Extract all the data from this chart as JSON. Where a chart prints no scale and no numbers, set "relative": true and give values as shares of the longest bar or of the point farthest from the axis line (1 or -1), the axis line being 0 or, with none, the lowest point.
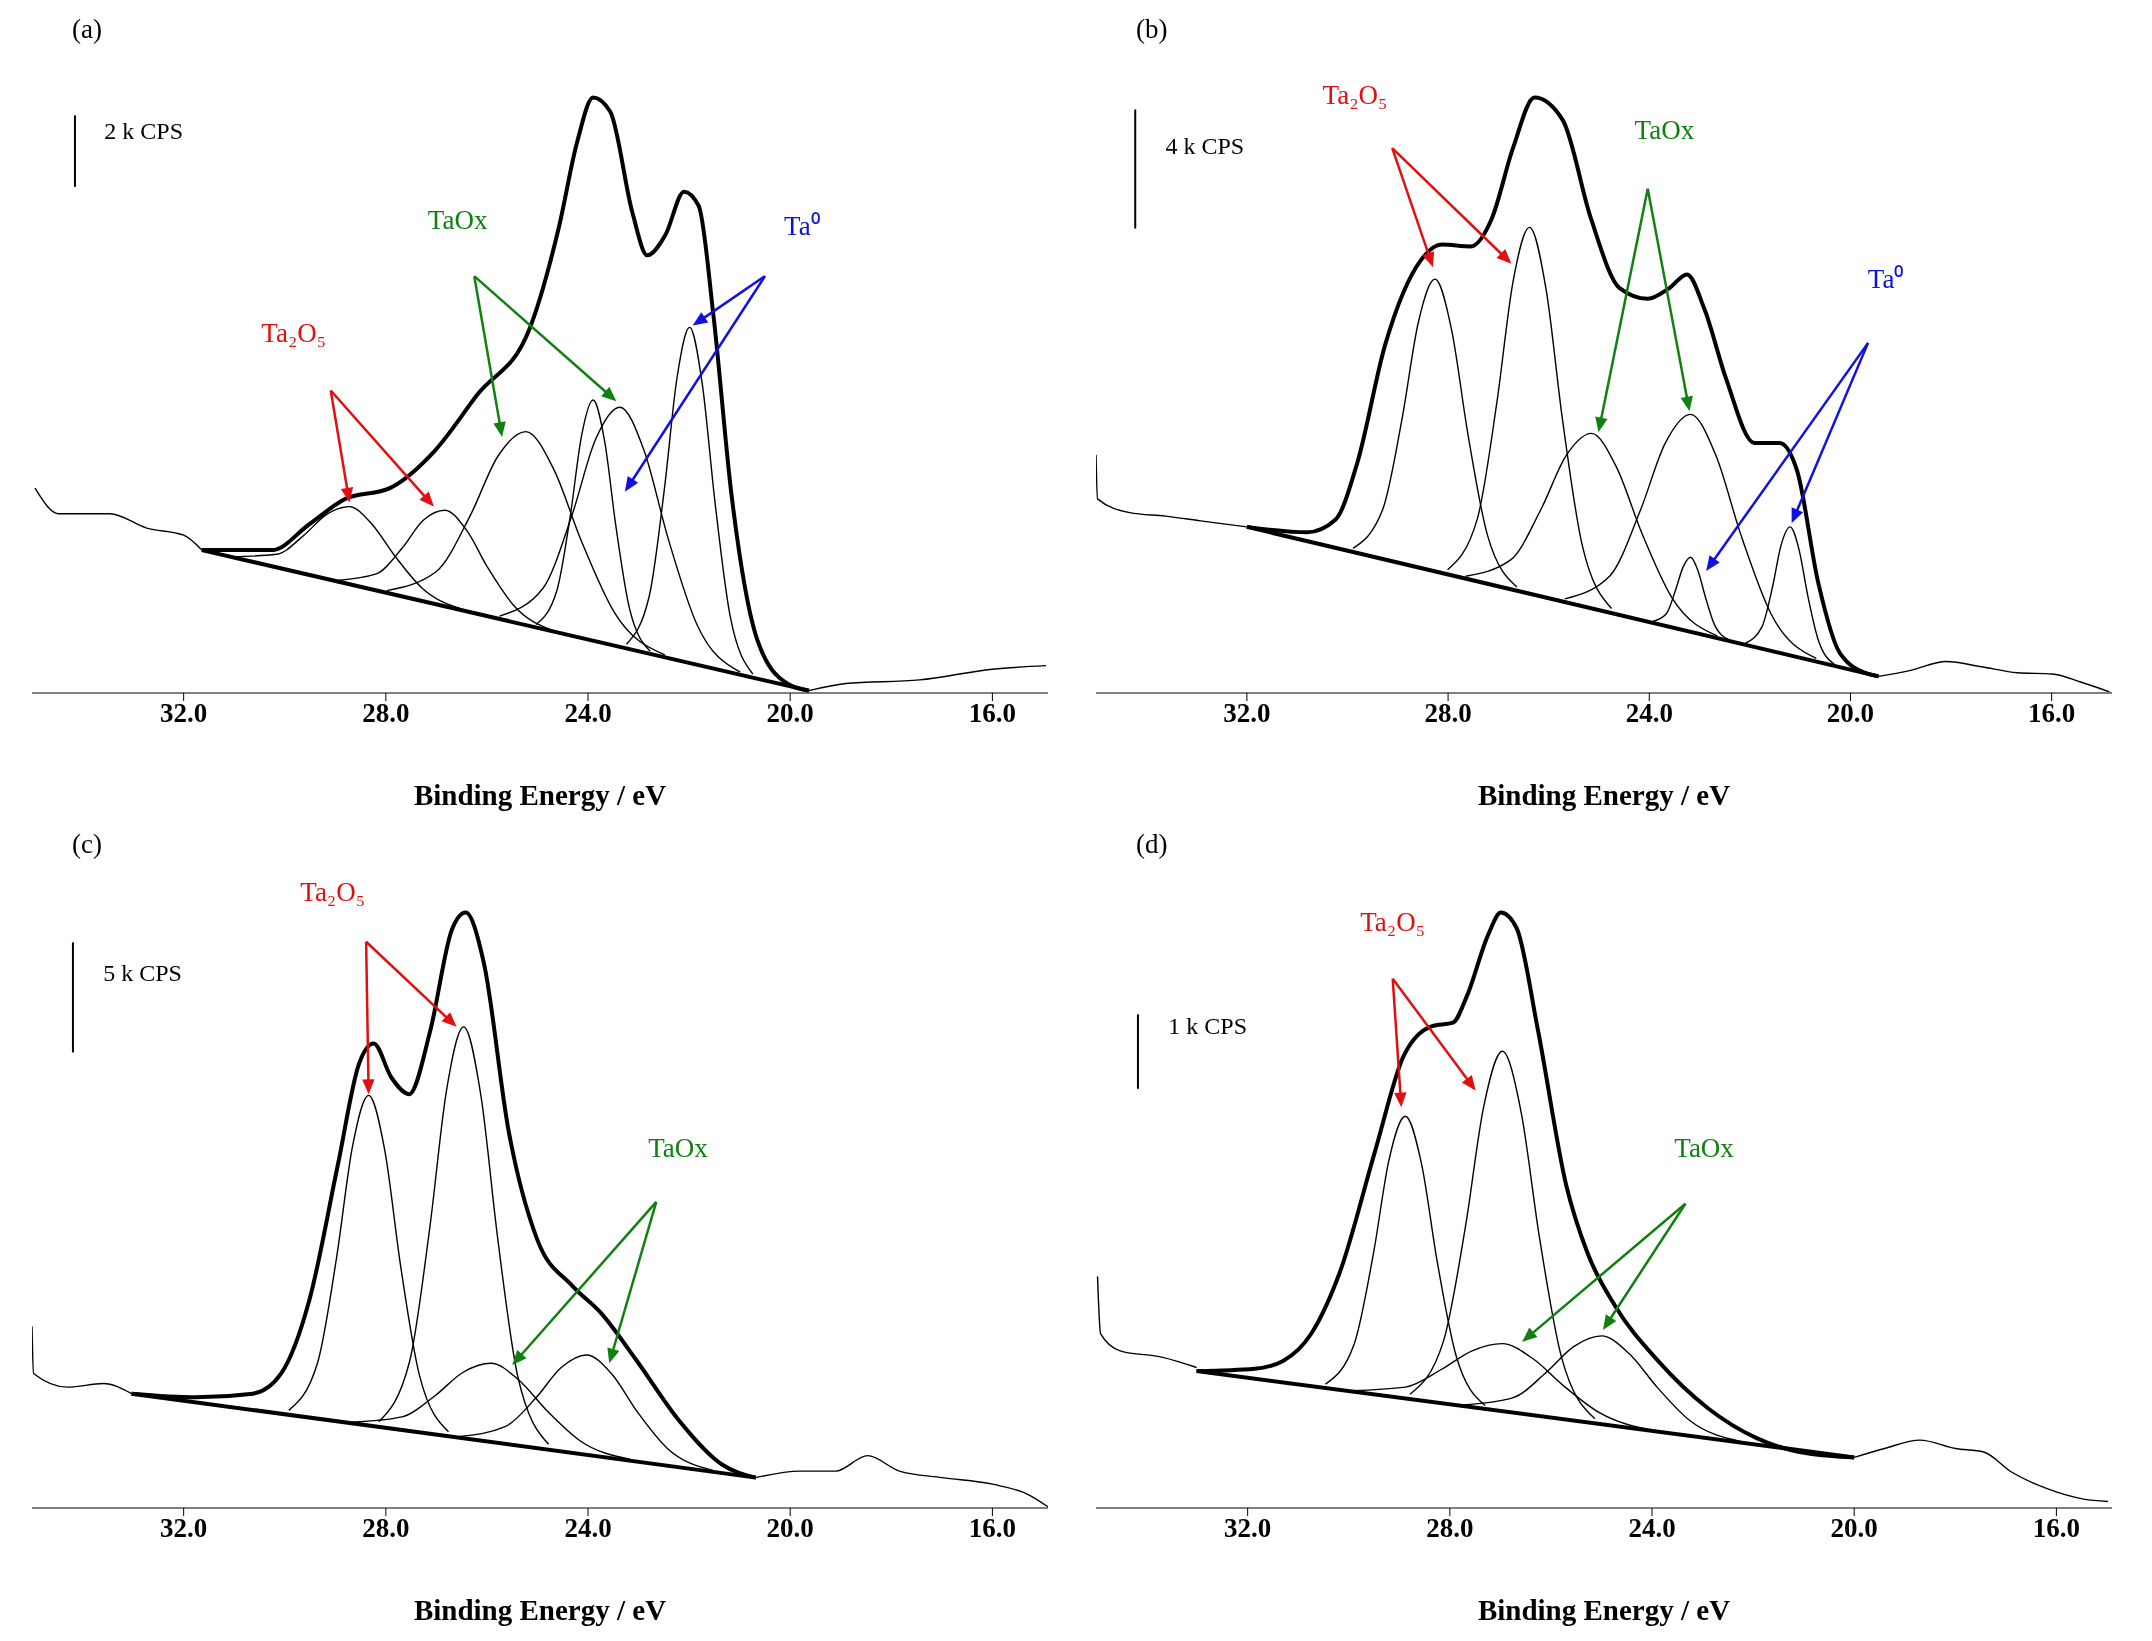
{
  "chart_data": [
    {
      "type": "line",
      "relative": true,
      "xlabel": "Binding Energy / eV",
      "xlim": [
        35.0,
        14.9
      ],
      "xticks": [
        {
          "value": 32,
          "label": "32.0"
        },
        {
          "value": 28,
          "label": "28.0"
        },
        {
          "value": 24,
          "label": "24.0"
        },
        {
          "value": 20,
          "label": "20.0"
        },
        {
          "value": 16,
          "label": "16.0"
        }
      ],
      "annotations": [
        "(a)",
        "2 k CPS",
        "Ta₂O₅",
        "TaOx",
        "Ta⁰"
      ],
      "series": [
        {
          "color": "#000000",
          "x": [
            34.94,
            34.47,
            33.46,
            32.73,
            32.0,
            31.64
          ],
          "values": [
            0.344,
            0.301,
            0.301,
            0.277,
            0.265,
            0.24
          ]
        },
        {
          "color": "#000000",
          "x": [
            19.63,
            18.9,
            17.44,
            16.0,
            14.94
          ],
          "values": [
            0.004,
            0.016,
            0.022,
            0.04,
            0.046
          ]
        },
        {
          "color": "#000000",
          "x": [
            31.64,
            30.25,
            29.52,
            28.8,
            27.92,
            27.05,
            26.18,
            25.16,
            24.58,
            24.21,
            23.9,
            23.56,
            23.12,
            22.83,
            22.47,
            22.1,
            21.81,
            21.52,
            21.16,
            20.65,
            20.06,
            19.63
          ],
          "values": [
            0.24,
            0.24,
            0.283,
            0.326,
            0.344,
            0.405,
            0.502,
            0.611,
            0.781,
            0.927,
            1,
            0.976,
            0.806,
            0.735,
            0.769,
            0.842,
            0.818,
            0.635,
            0.332,
            0.089,
            0.016,
            0.004
          ]
        },
        {
          "color": "#000000",
          "x": [
            31.64,
            19.63
          ],
          "values": [
            0.24,
            0.004
          ]
        },
        {
          "color": "#000000",
          "x": [
            30.97,
            30.16,
            29.62,
            29.17,
            28.72,
            28.27,
            27.82,
            27.28,
            26.47
          ],
          "values": [
            0.229,
            0.233,
            0.265,
            0.3,
            0.313,
            0.283,
            0.23,
            0.176,
            0.14
          ]
        },
        {
          "color": "#000000",
          "x": [
            28.96,
            28.19,
            27.68,
            27.26,
            26.83,
            26.4,
            25.98,
            25.47,
            24.7
          ],
          "values": [
            0.189,
            0.2,
            0.243,
            0.29,
            0.307,
            0.273,
            0.21,
            0.147,
            0.105
          ]
        },
        {
          "color": "#000000",
          "x": [
            27.98,
            27.0,
            26.33,
            25.78,
            25.23,
            24.68,
            24.13,
            23.47,
            22.48
          ],
          "values": [
            0.172,
            0.204,
            0.298,
            0.398,
            0.439,
            0.376,
            0.255,
            0.134,
            0.064
          ]
        },
        {
          "color": "#000000",
          "x": [
            25.03,
            24.62,
            24.35,
            24.13,
            23.9,
            23.67,
            23.45,
            23.18,
            22.77
          ],
          "values": [
            0.115,
            0.171,
            0.298,
            0.431,
            0.492,
            0.422,
            0.281,
            0.142,
            0.07
          ]
        },
        {
          "color": "#000000",
          "x": [
            25.75,
            24.89,
            24.32,
            23.85,
            23.37,
            22.89,
            22.42,
            21.85,
            20.99
          ],
          "values": [
            0.129,
            0.176,
            0.298,
            0.426,
            0.48,
            0.407,
            0.261,
            0.116,
            0.035
          ]
        },
        {
          "color": "#000000",
          "x": [
            23.24,
            22.79,
            22.49,
            22.24,
            21.99,
            21.74,
            21.49,
            21.19,
            20.74
          ],
          "values": [
            0.082,
            0.162,
            0.342,
            0.529,
            0.614,
            0.519,
            0.322,
            0.13,
            0.032
          ]
        }
      ]
    },
    {
      "type": "line",
      "relative": true,
      "xlabel": "Binding Energy / eV",
      "xlim": [
        35.0,
        14.8
      ],
      "xticks": [
        {
          "value": 32,
          "label": "32.0"
        },
        {
          "value": 28,
          "label": "28.0"
        },
        {
          "value": 24,
          "label": "24.0"
        },
        {
          "value": 20,
          "label": "20.0"
        },
        {
          "value": 16,
          "label": "16.0"
        }
      ],
      "annotations": [
        "(b)",
        "4 k CPS",
        "Ta₂O₅",
        "TaOx",
        "Ta⁰"
      ],
      "series": [
        {
          "color": "#000000",
          "x": [
            35.0,
            34.97,
            34.33,
            33.62,
            32.92,
            32.0
          ],
          "values": [
            0.4,
            0.326,
            0.303,
            0.297,
            0.289,
            0.279
          ]
        },
        {
          "color": "#000000",
          "x": [
            19.44,
            18.8,
            18.1,
            17.39,
            16.68,
            15.99,
            15.41,
            14.85
          ],
          "values": [
            0.028,
            0.038,
            0.053,
            0.044,
            0.034,
            0.032,
            0.018,
            0.002
          ]
        },
        {
          "color": "#000000",
          "x": [
            32.0,
            30.8,
            30.24,
            29.81,
            29.25,
            28.54,
            28.12,
            27.55,
            27.13,
            26.71,
            26.28,
            25.72,
            25.16,
            24.59,
            24.03,
            23.6,
            23.25,
            22.9,
            22.47,
            21.91,
            21.41,
            21.06,
            20.64,
            20.21,
            19.65,
            19.44
          ],
          "values": [
            0.279,
            0.27,
            0.291,
            0.385,
            0.585,
            0.727,
            0.753,
            0.75,
            0.797,
            0.915,
            1,
            0.962,
            0.797,
            0.68,
            0.662,
            0.68,
            0.703,
            0.644,
            0.527,
            0.42,
            0.42,
            0.373,
            0.185,
            0.067,
            0.032,
            0.028
          ]
        },
        {
          "color": "#000000",
          "x": [
            32.0,
            19.44
          ],
          "values": [
            0.279,
            0.028
          ]
        },
        {
          "color": "#000000",
          "x": [
            29.89,
            29.3,
            28.91,
            28.59,
            28.26,
            27.93,
            27.61,
            27.22,
            26.63
          ],
          "values": [
            0.243,
            0.308,
            0.463,
            0.623,
            0.695,
            0.61,
            0.437,
            0.266,
            0.178
          ]
        },
        {
          "color": "#000000",
          "x": [
            28.01,
            27.42,
            27.03,
            26.71,
            26.38,
            26.05,
            25.73,
            25.34,
            24.75
          ],
          "values": [
            0.207,
            0.292,
            0.488,
            0.69,
            0.782,
            0.677,
            0.462,
            0.251,
            0.142
          ]
        },
        {
          "color": "#000000",
          "x": [
            27.65,
            26.75,
            26.15,
            25.65,
            25.15,
            24.65,
            24.15,
            23.55,
            22.65
          ],
          "values": [
            0.196,
            0.224,
            0.309,
            0.399,
            0.436,
            0.379,
            0.269,
            0.16,
            0.096
          ]
        },
        {
          "color": "#000000",
          "x": [
            25.68,
            24.78,
            24.18,
            23.68,
            23.18,
            22.68,
            22.18,
            21.58,
            20.68
          ],
          "values": [
            0.158,
            0.197,
            0.306,
            0.42,
            0.468,
            0.4,
            0.266,
            0.133,
            0.058
          ]
        },
        {
          "color": "#000000",
          "x": [
            23.93,
            23.66,
            23.48,
            23.33,
            23.18,
            23.03,
            22.88,
            22.7,
            22.43
          ],
          "values": [
            0.12,
            0.133,
            0.172,
            0.211,
            0.228,
            0.205,
            0.16,
            0.114,
            0.09
          ]
        },
        {
          "color": "#000000",
          "x": [
            22.08,
            21.76,
            21.55,
            21.38,
            21.2,
            21.02,
            20.85,
            20.64,
            20.32
          ],
          "values": [
            0.084,
            0.111,
            0.178,
            0.248,
            0.279,
            0.24,
            0.164,
            0.089,
            0.048
          ]
        }
      ]
    },
    {
      "type": "line",
      "relative": true,
      "xlabel": "Binding Energy / eV",
      "xlim": [
        35.0,
        14.9
      ],
      "xticks": [
        {
          "value": 32,
          "label": "32.0"
        },
        {
          "value": 28,
          "label": "28.0"
        },
        {
          "value": 24,
          "label": "24.0"
        },
        {
          "value": 20,
          "label": "20.0"
        },
        {
          "value": 16,
          "label": "16.0"
        }
      ],
      "annotations": [
        "(c)",
        "5 k CPS",
        "Ta₂O₅",
        "TaOx"
      ],
      "series": [
        {
          "color": "#000000",
          "x": [
            35.0,
            34.97,
            34.29,
            33.59,
            33.03
          ],
          "values": [
            0.305,
            0.226,
            0.203,
            0.209,
            0.192
          ]
        },
        {
          "color": "#000000",
          "x": [
            20.68,
            19.81,
            19.1,
            18.47,
            17.84,
            16.99,
            16.0,
            15.3,
            14.9
          ],
          "values": [
            0.051,
            0.062,
            0.062,
            0.088,
            0.062,
            0.051,
            0.04,
            0.023,
            0.002
          ]
        },
        {
          "color": "#000000",
          "x": [
            33.03,
            31.76,
            30.63,
            30.07,
            29.51,
            28.95,
            28.53,
            28.24,
            27.89,
            27.54,
            27.12,
            26.69,
            26.42,
            26.06,
            25.57,
            25.01,
            24.31,
            23.75,
            23.05,
            22.2,
            21.35,
            20.68
          ],
          "values": [
            0.192,
            0.186,
            0.192,
            0.226,
            0.35,
            0.576,
            0.746,
            0.78,
            0.723,
            0.695,
            0.802,
            0.972,
            1,
            0.915,
            0.633,
            0.452,
            0.373,
            0.328,
            0.249,
            0.147,
            0.073,
            0.051
          ]
        },
        {
          "color": "#000000",
          "x": [
            33.03,
            20.68
          ],
          "values": [
            0.192,
            0.051
          ]
        },
        {
          "color": "#000000",
          "x": [
            29.92,
            29.35,
            28.97,
            28.66,
            28.34,
            28.02,
            27.71,
            27.33,
            26.76
          ],
          "values": [
            0.164,
            0.244,
            0.423,
            0.607,
            0.693,
            0.6,
            0.408,
            0.221,
            0.128
          ]
        },
        {
          "color": "#000000",
          "x": [
            28.14,
            27.53,
            27.13,
            26.8,
            26.46,
            26.12,
            25.79,
            25.39,
            24.78
          ],
          "values": [
            0.145,
            0.246,
            0.471,
            0.701,
            0.808,
            0.693,
            0.455,
            0.221,
            0.107
          ]
        },
        {
          "color": "#000000",
          "x": [
            28.67,
            27.68,
            27.02,
            26.47,
            25.92,
            25.37,
            24.82,
            24.16,
            23.17
          ],
          "values": [
            0.144,
            0.153,
            0.189,
            0.228,
            0.243,
            0.215,
            0.164,
            0.113,
            0.082
          ]
        },
        {
          "color": "#000000",
          "x": [
            26.53,
            25.63,
            25.03,
            24.53,
            24.03,
            23.53,
            23.03,
            22.43,
            21.53
          ],
          "values": [
            0.12,
            0.137,
            0.185,
            0.236,
            0.257,
            0.225,
            0.162,
            0.1,
            0.063
          ]
        }
      ]
    },
    {
      "type": "line",
      "relative": true,
      "xlabel": "Binding Energy / eV",
      "xlim": [
        35.0,
        14.9
      ],
      "xticks": [
        {
          "value": 32,
          "label": "32.0"
        },
        {
          "value": 28,
          "label": "28.0"
        },
        {
          "value": 24,
          "label": "24.0"
        },
        {
          "value": 20,
          "label": "20.0"
        },
        {
          "value": 16,
          "label": "16.0"
        }
      ],
      "annotations": [
        "(d)",
        "1 k CPS",
        "Ta₂O₅",
        "TaOx"
      ],
      "series": [
        {
          "color": "#000000",
          "x": [
            34.97,
            34.91,
            34.52,
            33.68,
            33.01
          ],
          "values": [
            0.389,
            0.293,
            0.264,
            0.253,
            0.236
          ]
        },
        {
          "color": "#000000",
          "x": [
            20.0,
            19.4,
            18.7,
            18.0,
            17.44,
            16.88,
            16.17,
            15.46,
            14.98
          ],
          "values": [
            0.085,
            0.1,
            0.114,
            0.1,
            0.094,
            0.06,
            0.032,
            0.015,
            0.011
          ]
        },
        {
          "color": "#000000",
          "x": [
            33.01,
            31.86,
            31.3,
            30.74,
            30.18,
            29.48,
            28.92,
            28.36,
            27.94,
            27.66,
            27.24,
            26.99,
            26.68,
            26.26,
            25.7,
            25.28,
            24.72,
            23.88,
            22.9,
            21.92,
            21.08,
            20.0
          ],
          "values": [
            0.23,
            0.234,
            0.247,
            0.293,
            0.395,
            0.599,
            0.758,
            0.809,
            0.815,
            0.86,
            0.963,
            1,
            0.974,
            0.804,
            0.543,
            0.429,
            0.338,
            0.247,
            0.168,
            0.117,
            0.094,
            0.085
          ]
        },
        {
          "color": "#000000",
          "x": [
            33.01,
            20.0
          ],
          "values": [
            0.23,
            0.085
          ]
        },
        {
          "color": "#000000",
          "x": [
            30.46,
            29.89,
            29.51,
            29.2,
            28.88,
            28.56,
            28.25,
            27.87,
            27.3
          ],
          "values": [
            0.208,
            0.276,
            0.428,
            0.586,
            0.658,
            0.578,
            0.414,
            0.254,
            0.172
          ]
        },
        {
          "color": "#000000",
          "x": [
            28.79,
            28.13,
            27.69,
            27.33,
            26.96,
            26.59,
            26.23,
            25.79,
            25.13
          ],
          "values": [
            0.191,
            0.279,
            0.473,
            0.674,
            0.767,
            0.665,
            0.456,
            0.253,
            0.15
          ]
        },
        {
          "color": "#000000",
          "x": [
            29.96,
            28.88,
            28.16,
            27.56,
            26.96,
            26.36,
            25.76,
            25.04,
            23.96
          ],
          "values": [
            0.197,
            0.203,
            0.233,
            0.264,
            0.276,
            0.251,
            0.206,
            0.16,
            0.13
          ]
        },
        {
          "color": "#000000",
          "x": [
            27.75,
            26.76,
            26.1,
            25.55,
            25.0,
            24.45,
            23.9,
            23.24,
            22.25
          ],
          "values": [
            0.173,
            0.185,
            0.227,
            0.271,
            0.289,
            0.259,
            0.203,
            0.146,
            0.112
          ]
        }
      ]
    }
  ]
}
